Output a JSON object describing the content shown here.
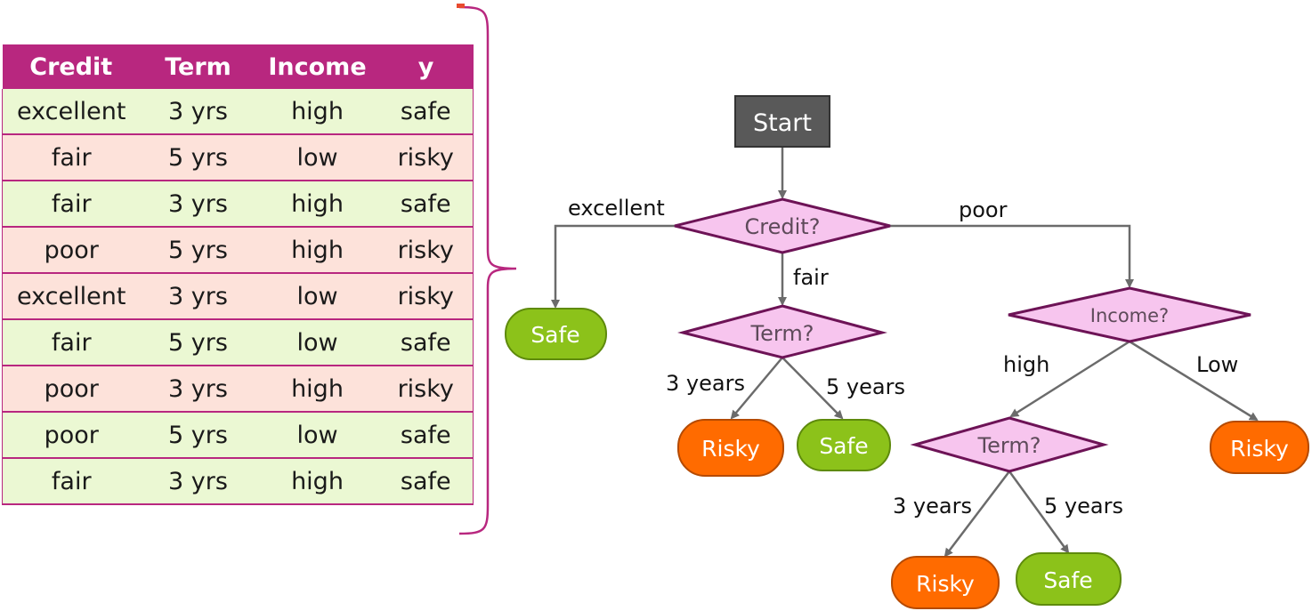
{
  "colors": {
    "header_bg": "#b8277f",
    "row_green": "#ebf8d3",
    "row_pink": "#fde2da",
    "start_fill": "#595959",
    "decision_fill": "#f7c5ee",
    "decision_stroke": "#6d1356",
    "leaf_safe": "#8cc21a",
    "leaf_risky": "#ff6b00",
    "edge": "#6b6b6b",
    "brace": "#b8277f"
  },
  "table": {
    "headers": [
      "Credit",
      "Term",
      "Income",
      "y"
    ],
    "rows": [
      {
        "cells": [
          "excellent",
          "3 yrs",
          "high",
          "safe"
        ],
        "tint": "green"
      },
      {
        "cells": [
          "fair",
          "5 yrs",
          "low",
          "risky"
        ],
        "tint": "pink"
      },
      {
        "cells": [
          "fair",
          "3 yrs",
          "high",
          "safe"
        ],
        "tint": "green"
      },
      {
        "cells": [
          "poor",
          "5 yrs",
          "high",
          "risky"
        ],
        "tint": "pink"
      },
      {
        "cells": [
          "excellent",
          "3 yrs",
          "low",
          "risky"
        ],
        "tint": "pink"
      },
      {
        "cells": [
          "fair",
          "5 yrs",
          "low",
          "safe"
        ],
        "tint": "green"
      },
      {
        "cells": [
          "poor",
          "3 yrs",
          "high",
          "risky"
        ],
        "tint": "pink"
      },
      {
        "cells": [
          "poor",
          "5 yrs",
          "low",
          "safe"
        ],
        "tint": "green"
      },
      {
        "cells": [
          "fair",
          "3 yrs",
          "high",
          "safe"
        ],
        "tint": "green"
      }
    ]
  },
  "tree": {
    "start": "Start",
    "decisions": {
      "credit": "Credit?",
      "term_fair": "Term?",
      "income": "Income?",
      "term_poor": "Term?"
    },
    "leaves": {
      "excellent_safe": "Safe",
      "fair_3_risky": "Risky",
      "fair_5_safe": "Safe",
      "low_risky": "Risky",
      "high_3_risky": "Risky",
      "high_5_safe": "Safe"
    },
    "edge_labels": {
      "excellent": "excellent",
      "poor": "poor",
      "fair": "fair",
      "fair_3": "3 years",
      "fair_5": "5 years",
      "high": "high",
      "low": "Low",
      "high_3": "3 years",
      "high_5": "5 years"
    }
  }
}
